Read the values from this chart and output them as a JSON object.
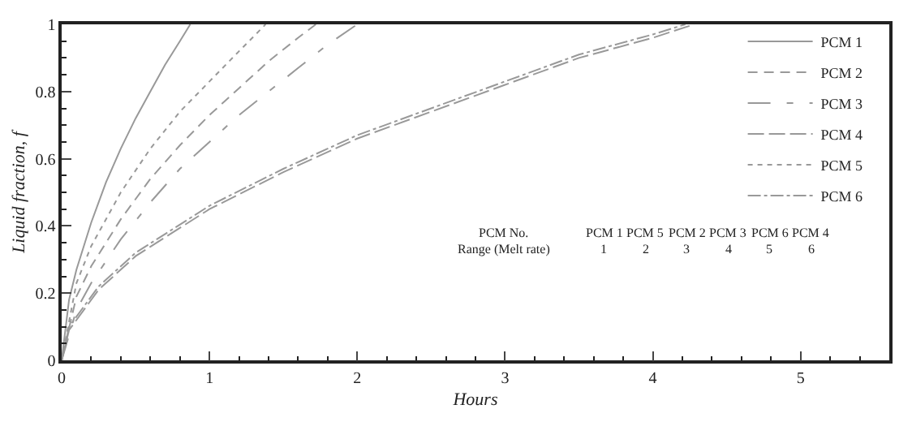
{
  "chart_data": {
    "type": "line",
    "xlabel": "Hours",
    "ylabel": "Liquid fraction, f",
    "xlim": [
      0,
      5.6
    ],
    "xticks": [
      0,
      1,
      2,
      3,
      4,
      5
    ],
    "ylim": [
      0,
      1
    ],
    "yticks": [
      0,
      0.2,
      0.4,
      0.6,
      0.8,
      1
    ],
    "legend": "right",
    "marker": "none",
    "series": [
      {
        "name": "PCM 1",
        "color": "#999999",
        "line_style": "solid",
        "x": [
          0,
          0.05,
          0.1,
          0.2,
          0.3,
          0.4,
          0.5,
          0.6,
          0.7,
          0.8,
          0.87
        ],
        "values": [
          0,
          0.18,
          0.27,
          0.41,
          0.53,
          0.63,
          0.72,
          0.8,
          0.88,
          0.95,
          1
        ]
      },
      {
        "name": "PCM 2",
        "color": "#999999",
        "line_style": "dashed",
        "x": [
          0,
          0.1,
          0.2,
          0.4,
          0.6,
          0.8,
          1.0,
          1.2,
          1.4,
          1.6,
          1.72
        ],
        "values": [
          0,
          0.19,
          0.28,
          0.42,
          0.54,
          0.64,
          0.73,
          0.81,
          0.89,
          0.96,
          1
        ]
      },
      {
        "name": "PCM 3",
        "color": "#999999",
        "line_style": "dashed",
        "x": [
          0,
          0.1,
          0.2,
          0.4,
          0.6,
          0.8,
          1.0,
          1.2,
          1.4,
          1.6,
          1.8,
          2.0
        ],
        "values": [
          0,
          0.15,
          0.23,
          0.36,
          0.47,
          0.57,
          0.65,
          0.73,
          0.8,
          0.87,
          0.94,
          1
        ]
      },
      {
        "name": "PCM 4",
        "color": "#999999",
        "line_style": "dashed",
        "x": [
          0,
          0.05,
          0.25,
          0.5,
          1,
          1.5,
          2,
          2.5,
          3,
          3.5,
          4,
          4.28
        ],
        "values": [
          0,
          0.09,
          0.21,
          0.31,
          0.45,
          0.56,
          0.66,
          0.74,
          0.82,
          0.9,
          0.96,
          1
        ]
      },
      {
        "name": "PCM 5",
        "color": "#999999",
        "line_style": "dotted",
        "x": [
          0,
          0.1,
          0.2,
          0.4,
          0.6,
          0.8,
          1.0,
          1.2,
          1.38
        ],
        "values": [
          0,
          0.23,
          0.34,
          0.5,
          0.63,
          0.74,
          0.83,
          0.92,
          1
        ]
      },
      {
        "name": "PCM 6",
        "color": "#999999",
        "line_style": "dashed",
        "x": [
          0,
          0.05,
          0.25,
          0.5,
          1,
          1.5,
          2,
          2.5,
          3,
          3.5,
          4,
          4.22
        ],
        "values": [
          0,
          0.1,
          0.22,
          0.32,
          0.46,
          0.57,
          0.67,
          0.75,
          0.83,
          0.91,
          0.97,
          1
        ]
      }
    ],
    "annotations": [
      "PCM No.",
      "PCM 1",
      "PCM 5",
      "PCM 2",
      "PCM 3",
      "PCM 6",
      "PCM 4",
      "Range (Melt rate)",
      "1",
      "2",
      "3",
      "4",
      "5",
      "6"
    ]
  }
}
